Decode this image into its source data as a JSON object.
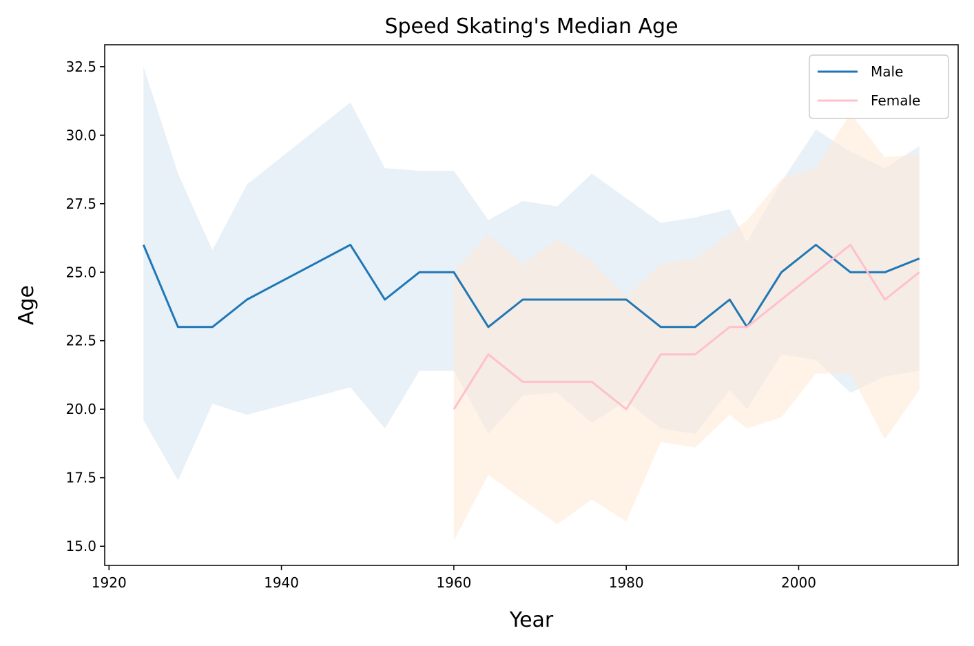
{
  "chart_data": {
    "type": "line",
    "title": "Speed Skating's Median Age",
    "xlabel": "Year",
    "ylabel": "Age",
    "xlim": [
      1919.5,
      2018.5
    ],
    "ylim": [
      14.3,
      33.3
    ],
    "xticks": [
      1920,
      1940,
      1960,
      1980,
      2000
    ],
    "xtick_labels": [
      "1920",
      "1940",
      "1960",
      "1980",
      "2000"
    ],
    "yticks": [
      15.0,
      17.5,
      20.0,
      22.5,
      25.0,
      27.5,
      30.0,
      32.5
    ],
    "ytick_labels": [
      "15.0",
      "17.5",
      "20.0",
      "22.5",
      "25.0",
      "27.5",
      "30.0",
      "32.5"
    ],
    "grid": false,
    "legend_position": "top-right",
    "series": [
      {
        "name": "Male",
        "color": "#1f77b4",
        "band_color": "#dbe8f4",
        "x": [
          1924,
          1928,
          1932,
          1936,
          1948,
          1952,
          1956,
          1960,
          1964,
          1968,
          1972,
          1976,
          1980,
          1984,
          1988,
          1992,
          1994,
          1998,
          2002,
          2006,
          2010,
          2014
        ],
        "values": [
          26,
          23,
          23,
          24,
          26,
          24,
          25,
          25,
          23,
          24,
          24,
          24,
          24,
          23,
          23,
          24,
          23,
          25,
          26,
          25,
          25,
          25.5
        ],
        "band_upper": [
          32.5,
          28.6,
          25.8,
          28.2,
          31.2,
          28.8,
          28.7,
          28.7,
          26.9,
          27.6,
          27.4,
          28.6,
          27.7,
          26.8,
          27.0,
          27.3,
          26.1,
          28.3,
          30.2,
          29.4,
          28.8,
          29.6
        ],
        "band_lower": [
          19.6,
          17.4,
          20.2,
          19.8,
          20.8,
          19.3,
          21.4,
          21.4,
          19.1,
          20.5,
          20.6,
          19.5,
          20.3,
          19.3,
          19.1,
          20.7,
          20.0,
          22.0,
          21.8,
          20.6,
          21.2,
          21.4
        ]
      },
      {
        "name": "Female",
        "color": "#ffc0cb",
        "band_color": "#ffe9d6",
        "x": [
          1960,
          1964,
          1968,
          1972,
          1976,
          1980,
          1984,
          1988,
          1992,
          1994,
          1998,
          2002,
          2006,
          2010,
          2014
        ],
        "values": [
          20,
          22,
          21,
          21,
          21,
          20,
          22,
          22,
          23,
          23,
          24,
          25,
          26,
          24,
          25
        ],
        "band_upper": [
          25.0,
          26.4,
          25.3,
          26.2,
          25.4,
          24.1,
          25.3,
          25.5,
          26.4,
          26.9,
          28.4,
          28.8,
          30.8,
          29.2,
          29.3
        ],
        "band_lower": [
          15.2,
          17.6,
          16.7,
          15.8,
          16.7,
          15.9,
          18.8,
          18.6,
          19.8,
          19.3,
          19.7,
          21.3,
          21.3,
          18.9,
          20.7
        ]
      }
    ]
  }
}
